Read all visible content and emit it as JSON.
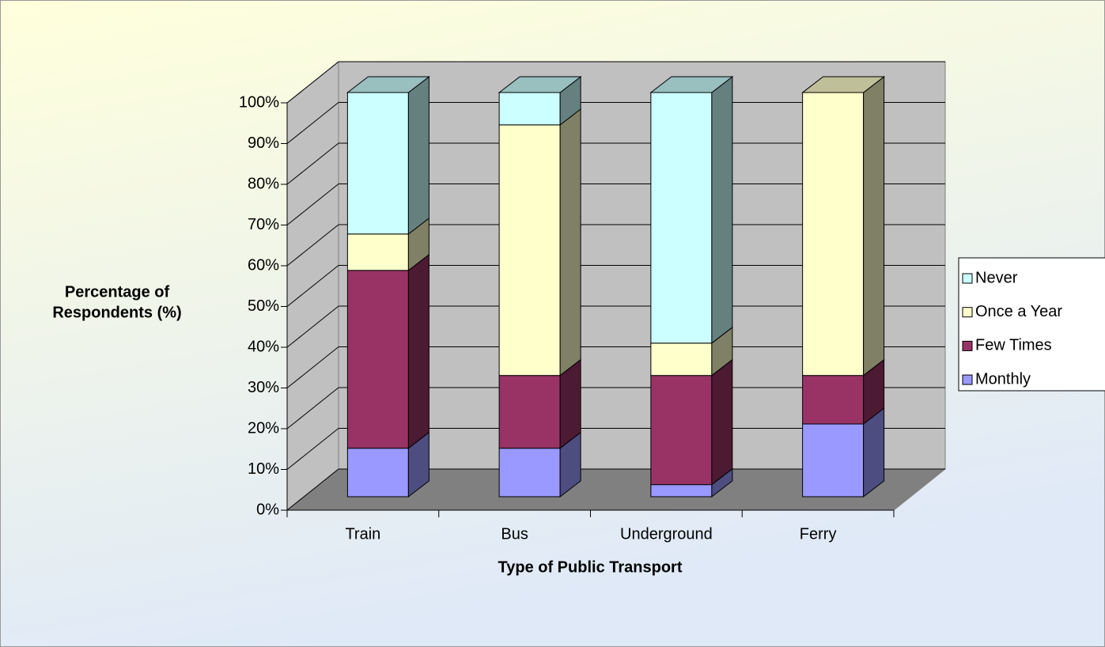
{
  "chart_data": {
    "type": "bar3d_stacked",
    "x_label": "Type of Public Transport",
    "y_label": [
      "Percentage of",
      "Respondents (%)"
    ],
    "categories": [
      "Train",
      "Bus",
      "Underground",
      "Ferry"
    ],
    "series": [
      {
        "name": "Monthly",
        "color": "#9999ff",
        "values": [
          12,
          12,
          3,
          18
        ]
      },
      {
        "name": "Few Times",
        "color": "#993366",
        "values": [
          44,
          18,
          27,
          12
        ]
      },
      {
        "name": "Once a Year",
        "color": "#ffffcc",
        "values": [
          9,
          62,
          8,
          70
        ]
      },
      {
        "name": "Never",
        "color": "#ccffff",
        "values": [
          35,
          8,
          62,
          0
        ]
      }
    ],
    "ylim": [
      0,
      100
    ],
    "yticks": [
      {
        "value": 0,
        "label": "0%"
      },
      {
        "value": 10,
        "label": "10%"
      },
      {
        "value": 20,
        "label": "20%"
      },
      {
        "value": 30,
        "label": "30%"
      },
      {
        "value": 40,
        "label": "40%"
      },
      {
        "value": 50,
        "label": "50%"
      },
      {
        "value": 60,
        "label": "60%"
      },
      {
        "value": 70,
        "label": "70%"
      },
      {
        "value": 80,
        "label": "80%"
      },
      {
        "value": 90,
        "label": "90%"
      },
      {
        "value": 100,
        "label": "100%"
      }
    ],
    "grid": true,
    "legend": "right"
  }
}
